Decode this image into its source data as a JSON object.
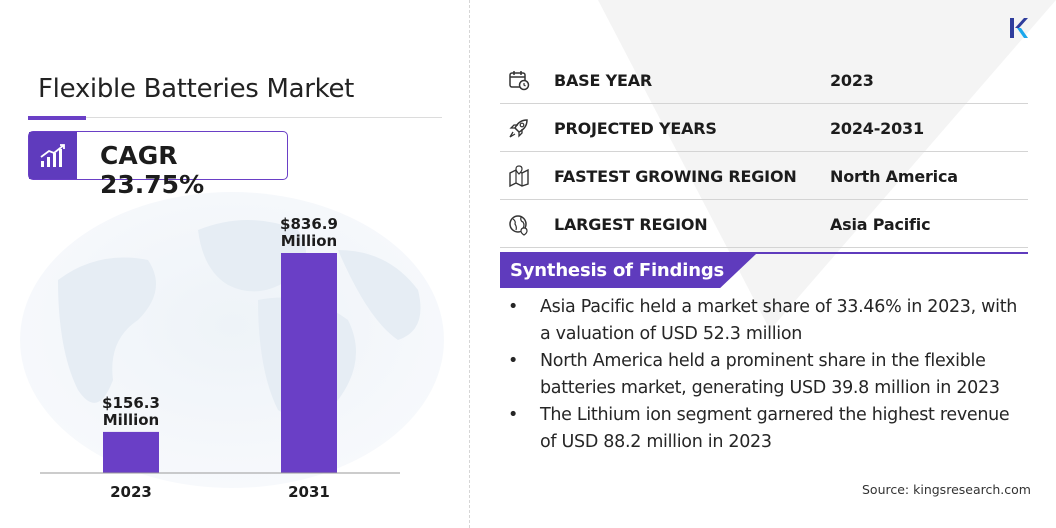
{
  "title": "Flexible Batteries Market",
  "cagr": "CAGR 23.75%",
  "chart_data": {
    "type": "bar",
    "categories": [
      "2023",
      "2031"
    ],
    "values": [
      156.3,
      836.9
    ],
    "value_labels": [
      [
        "$156.3",
        "Million"
      ],
      [
        "$836.9",
        "Million"
      ]
    ],
    "unit": "USD Million",
    "bar_color": "#6a3fc6",
    "grid": false
  },
  "info": [
    {
      "icon": "calendar-icon",
      "label": "BASE YEAR",
      "value": "2023"
    },
    {
      "icon": "rocket-icon",
      "label": "PROJECTED YEARS",
      "value": "2024-2031"
    },
    {
      "icon": "map-icon",
      "label": "FASTEST GROWING REGION",
      "value": "North America"
    },
    {
      "icon": "globe-icon",
      "label": "LARGEST REGION",
      "value": "Asia Pacific"
    }
  ],
  "synthesis": {
    "title": "Synthesis of Findings",
    "bullet": "•",
    "items": [
      "Asia Pacific held a market share of 33.46% in 2023, with a valuation of USD 52.3 million",
      "North America held a prominent share in the flexible batteries market, generating USD 39.8 million in 2023",
      "The Lithium ion segment garnered the highest revenue of USD 88.2 million in 2023"
    ]
  },
  "source": "Source:  kingsresearch.com",
  "colors": {
    "accent": "#5f3bbd",
    "bar": "#6a3fc6",
    "logo": "#2f3d9c"
  }
}
